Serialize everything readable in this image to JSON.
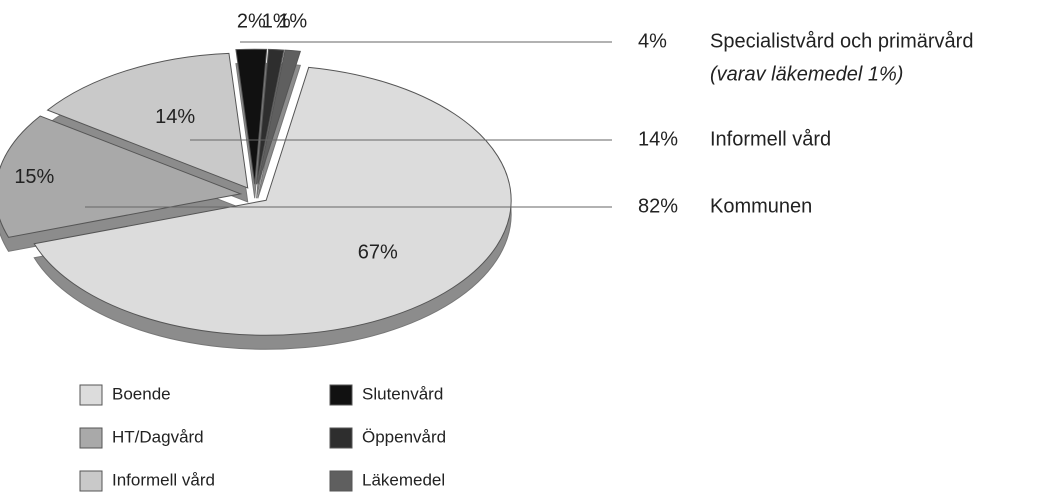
{
  "chart_data": {
    "type": "pie",
    "categories": [
      "Boende",
      "HT/Dagvård",
      "Informell vård",
      "Slutenvård",
      "Öppenvård",
      "Läkemedel"
    ],
    "values": [
      67,
      15,
      14,
      2,
      1,
      1
    ],
    "value_labels": [
      "67%",
      "15%",
      "14%",
      "2%",
      "1%",
      "1%"
    ],
    "colors": [
      "#dcdcdc",
      "#a9a9a9",
      "#c9c9c9",
      "#111111",
      "#2e2e2e",
      "#5f5f5f"
    ],
    "groups": {
      "values": [
        4,
        14,
        82
      ],
      "value_labels": [
        "4%",
        "14%",
        "82%"
      ],
      "names": [
        "Specialistvård och primärvård",
        "Informell vård",
        "Kommunen"
      ],
      "notes": [
        "(varav läkemedel 1%)",
        null,
        null
      ]
    },
    "legend": true
  }
}
